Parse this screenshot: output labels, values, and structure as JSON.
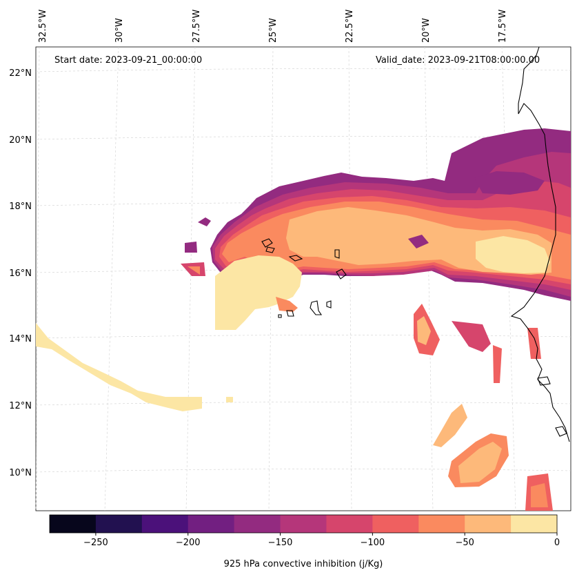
{
  "header": {
    "start_date": "Start date: 2023-09-21_00:00:00",
    "valid_date": "Valid_date: 2023-09-21T08:00:00.00"
  },
  "map": {
    "lon_labels": [
      "32.5°W",
      "30°W",
      "27.5°W",
      "25°W",
      "22.5°W",
      "20°W",
      "17.5°W"
    ],
    "lat_labels": [
      "22°N",
      "20°N",
      "18°N",
      "16°N",
      "14°N",
      "12°N",
      "10°N"
    ],
    "gridlines": "dashed"
  },
  "colorbar": {
    "label": "925 hPa convective inhibition (j/Kg)",
    "tick_labels": [
      "−250",
      "−200",
      "−150",
      "−100",
      "−50",
      "0"
    ],
    "levels": [
      -275,
      -250,
      -225,
      -200,
      -175,
      -150,
      -125,
      -100,
      -75,
      -50,
      -25,
      0
    ],
    "colors": [
      "#07061c",
      "#221150",
      "#4b117a",
      "#721f81",
      "#932b80",
      "#b5367a",
      "#d6456c",
      "#ef6060",
      "#fa8a5f",
      "#fdb97a",
      "#fce6a4"
    ]
  }
}
